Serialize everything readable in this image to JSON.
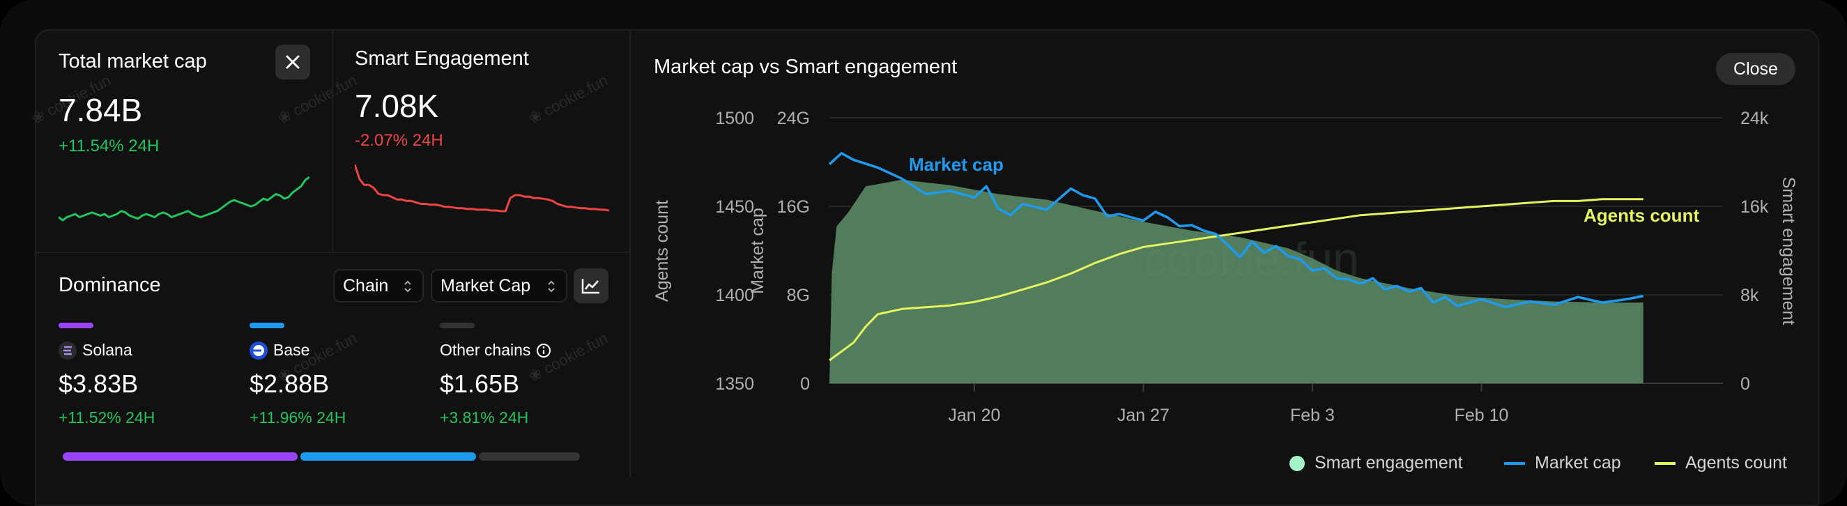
{
  "total_market_cap": {
    "label": "Total market cap",
    "value": "7.84B",
    "change": "+11.54% 24H",
    "spark": [
      40,
      38,
      40,
      41,
      42,
      40,
      41,
      42,
      43,
      42,
      41,
      42,
      40,
      41,
      42,
      44,
      43,
      41,
      40,
      39,
      41,
      42,
      41,
      40,
      42,
      43,
      42,
      40,
      41,
      42,
      43,
      44,
      42,
      41,
      40,
      41,
      42,
      43,
      44,
      46,
      48,
      50,
      51,
      50,
      49,
      48,
      47,
      48,
      50,
      52,
      51,
      53,
      55,
      54,
      52,
      53,
      56,
      58,
      60,
      64,
      66
    ]
  },
  "smart_engagement": {
    "label": "Smart Engagement",
    "value": "7.08K",
    "change": "-2.07% 24H",
    "spark": [
      100,
      80,
      72,
      72,
      68,
      60,
      58,
      58,
      55,
      52,
      52,
      50,
      50,
      48,
      46,
      46,
      45,
      45,
      44,
      42,
      42,
      41,
      40,
      40,
      39,
      39,
      38,
      38,
      38,
      37,
      37,
      36,
      36,
      54,
      58,
      58,
      56,
      56,
      54,
      54,
      53,
      52,
      50,
      46,
      44,
      42,
      42,
      41,
      40,
      40,
      39,
      39,
      38,
      38,
      37
    ]
  },
  "close_icon": "close-icon",
  "dominance": {
    "title": "Dominance",
    "filter_chain": "Chain",
    "filter_metric": "Market Cap",
    "chart_toggle_icon": "line-chart-icon",
    "chains": [
      {
        "name": "Solana",
        "value": "$3.83B",
        "change": "+11.52% 24H",
        "color": "#9945ff",
        "icon": "solana-icon"
      },
      {
        "name": "Base",
        "value": "$2.88B",
        "change": "+11.96% 24H",
        "color": "#1d9bf0",
        "icon": "base-icon"
      },
      {
        "name": "Other chains",
        "value": "$1.65B",
        "change": "+3.81% 24H",
        "color": "#333333",
        "icon": "info-icon"
      }
    ],
    "shares": [
      0.4567,
      0.3436,
      0.1997
    ]
  },
  "watermark": "cookie.fun",
  "colors": {
    "positive": "#22c55e",
    "negative": "#ef4444",
    "market_cap": "#1d9bf0",
    "agents": "#e4f55e",
    "engagement_fill": "#5a8a66",
    "engagement_legend": "#a7f3c8"
  },
  "chart": {
    "title": "Market cap vs Smart engagement",
    "close_label": "Close",
    "annotation_market_cap": "Market cap",
    "annotation_agents": "Agents count",
    "watermark": "cookie.fun",
    "legend": {
      "engagement": "Smart engagement",
      "market_cap": "Market cap",
      "agents": "Agents count"
    }
  },
  "chart_data": {
    "type": "line",
    "title": "Market cap vs Smart engagement",
    "x_domain": [
      0,
      37
    ],
    "x_ticks": [
      {
        "label": "Jan 20",
        "at": 6
      },
      {
        "label": "Jan 27",
        "at": 13
      },
      {
        "label": "Feb 3",
        "at": 20
      },
      {
        "label": "Feb 10",
        "at": 27
      }
    ],
    "y_agents": {
      "label": "Agents count",
      "range": [
        1350,
        1500
      ],
      "ticks": [
        "1500",
        "1450",
        "1400",
        "1350"
      ]
    },
    "y_market_cap": {
      "label": "Market cap",
      "range": [
        0,
        24
      ],
      "unit": "G",
      "ticks": [
        "24G",
        "16G",
        "8G",
        "0"
      ]
    },
    "y_engagement": {
      "label": "Smart engagement",
      "range": [
        0,
        24000
      ],
      "ticks": [
        "24k",
        "16k",
        "8k",
        "0"
      ]
    },
    "series": [
      {
        "name": "Smart engagement",
        "kind": "area",
        "points": [
          [
            0.0,
            0
          ],
          [
            0.1,
            10000
          ],
          [
            0.3,
            14200
          ],
          [
            0.8,
            15500
          ],
          [
            1.5,
            17800
          ],
          [
            3.0,
            18400
          ],
          [
            5.0,
            17900
          ],
          [
            7.0,
            17100
          ],
          [
            9.0,
            16600
          ],
          [
            11.0,
            15600
          ],
          [
            13.0,
            14600
          ],
          [
            15.0,
            13800
          ],
          [
            17.0,
            13200
          ],
          [
            19.0,
            12200
          ],
          [
            20.0,
            11300
          ],
          [
            21.0,
            10200
          ],
          [
            22.0,
            9500
          ],
          [
            24.0,
            8600
          ],
          [
            26.0,
            7900
          ],
          [
            28.0,
            7600
          ],
          [
            30.0,
            7400
          ],
          [
            31.0,
            7350
          ],
          [
            32.0,
            7300
          ],
          [
            33.0,
            7300
          ],
          [
            33.7,
            7300
          ],
          [
            33.7,
            0
          ]
        ]
      },
      {
        "name": "Market cap",
        "kind": "line",
        "points": [
          [
            0.0,
            19.8
          ],
          [
            0.5,
            20.8
          ],
          [
            1.0,
            20.2
          ],
          [
            2.0,
            19.5
          ],
          [
            3.0,
            18.5
          ],
          [
            4.0,
            17.1
          ],
          [
            5.0,
            17.4
          ],
          [
            6.0,
            16.8
          ],
          [
            6.5,
            17.8
          ],
          [
            7.0,
            15.8
          ],
          [
            7.5,
            15.2
          ],
          [
            8.0,
            16.2
          ],
          [
            9.0,
            15.7
          ],
          [
            10.0,
            17.6
          ],
          [
            10.5,
            17.0
          ],
          [
            11.0,
            16.7
          ],
          [
            11.5,
            15.1
          ],
          [
            12.0,
            15.3
          ],
          [
            13.0,
            14.7
          ],
          [
            13.5,
            15.5
          ],
          [
            14.0,
            15.0
          ],
          [
            14.5,
            14.2
          ],
          [
            15.0,
            14.3
          ],
          [
            15.5,
            13.8
          ],
          [
            16.0,
            13.5
          ],
          [
            16.5,
            12.5
          ],
          [
            17.0,
            11.4
          ],
          [
            17.5,
            12.8
          ],
          [
            18.0,
            11.8
          ],
          [
            18.5,
            12.4
          ],
          [
            19.0,
            11.5
          ],
          [
            19.5,
            11.2
          ],
          [
            20.0,
            10.2
          ],
          [
            20.5,
            10.4
          ],
          [
            21.0,
            9.5
          ],
          [
            21.5,
            9.4
          ],
          [
            22.0,
            9.0
          ],
          [
            22.5,
            9.5
          ],
          [
            23.0,
            8.5
          ],
          [
            23.5,
            8.8
          ],
          [
            24.0,
            8.3
          ],
          [
            24.5,
            8.6
          ],
          [
            25.0,
            7.3
          ],
          [
            25.5,
            7.8
          ],
          [
            26.0,
            7.0
          ],
          [
            27.0,
            7.6
          ],
          [
            28.0,
            6.9
          ],
          [
            29.0,
            7.4
          ],
          [
            30.0,
            7.1
          ],
          [
            31.0,
            7.8
          ],
          [
            32.0,
            7.3
          ],
          [
            33.0,
            7.6
          ],
          [
            33.7,
            7.9
          ]
        ]
      },
      {
        "name": "Agents count",
        "kind": "line",
        "points": [
          [
            0.0,
            1363
          ],
          [
            1.0,
            1373
          ],
          [
            1.5,
            1382
          ],
          [
            2.0,
            1389
          ],
          [
            3.0,
            1392
          ],
          [
            5.0,
            1394
          ],
          [
            6.0,
            1396
          ],
          [
            7.0,
            1399
          ],
          [
            8.0,
            1403
          ],
          [
            9.0,
            1407
          ],
          [
            10.0,
            1412
          ],
          [
            11.0,
            1418
          ],
          [
            12.0,
            1423
          ],
          [
            13.0,
            1427
          ],
          [
            14.0,
            1429
          ],
          [
            15.0,
            1431
          ],
          [
            16.0,
            1433
          ],
          [
            17.0,
            1435
          ],
          [
            18.0,
            1437
          ],
          [
            19.0,
            1439
          ],
          [
            20.0,
            1441
          ],
          [
            21.0,
            1443
          ],
          [
            22.0,
            1445
          ],
          [
            23.0,
            1446
          ],
          [
            24.0,
            1447
          ],
          [
            25.0,
            1448
          ],
          [
            26.0,
            1449
          ],
          [
            27.0,
            1450
          ],
          [
            28.0,
            1451
          ],
          [
            29.0,
            1452
          ],
          [
            30.0,
            1453
          ],
          [
            31.0,
            1453
          ],
          [
            32.0,
            1454
          ],
          [
            33.0,
            1454
          ],
          [
            33.7,
            1454
          ]
        ]
      }
    ]
  }
}
